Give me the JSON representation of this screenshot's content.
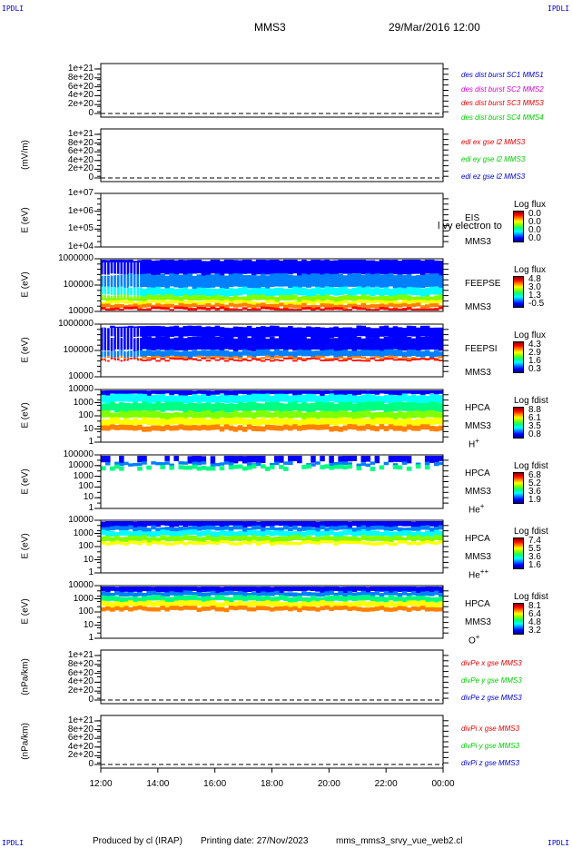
{
  "corners": {
    "tl": "IPDLI",
    "tr": "IPDLI",
    "bl": "IPDLI",
    "br": "IPDLI"
  },
  "header": {
    "spacecraft": "MMS3",
    "datetime": "29/Mar/2016 12:00"
  },
  "footer": {
    "produced": "Produced by cl (IRAP)",
    "printing": "Printing date: 27/Nov/2023",
    "file": "mms_mms3_srvy_vue_web2.cl"
  },
  "colors": {
    "red": "#e00000",
    "green": "#00cc00",
    "blue": "#0000cc",
    "magenta": "#cc00cc"
  },
  "chart_data": {
    "type": "heatmap",
    "x_ticks": [
      "12:00",
      "14:00",
      "16:00",
      "18:00",
      "20:00",
      "22:00",
      "00:00"
    ],
    "panels": [
      {
        "id": "p1",
        "ylabel": "",
        "yticks": [
          "1e+21",
          "8e+20",
          "6e+20",
          "4e+20",
          "2e+20",
          "0"
        ],
        "legend": [
          {
            "text": "des dist burst SC1 MMS1",
            "color": "#0000cc"
          },
          {
            "text": "des dist burst SC2 MMS2",
            "color": "#cc00cc"
          },
          {
            "text": "des dist burst SC3 MMS3",
            "color": "#e00000"
          },
          {
            "text": "des dist burst SC4 MMS4",
            "color": "#00cc00"
          }
        ]
      },
      {
        "id": "p2",
        "ylabel": "(mV/m)",
        "yticks": [
          "1e+21",
          "8e+20",
          "6e+20",
          "4e+20",
          "2e+20",
          "0"
        ],
        "legend": [
          {
            "text": "edi ex gse l2 MMS3",
            "color": "#e00000"
          },
          {
            "text": "edi ey gse l2 MMS3",
            "color": "#00cc00"
          },
          {
            "text": "edi ez gse l2 MMS3",
            "color": "#0000cc"
          }
        ]
      },
      {
        "id": "p3",
        "ylabel": "E (eV)",
        "yticks": [
          "1e+07",
          "1e+06",
          "1e+05",
          "1e+04"
        ],
        "instrument": "EIS",
        "sc": "MMS3",
        "overlay": "l vy electron to",
        "cbar_title": "Log flux",
        "cbar_values": [
          "0.0",
          "0.0",
          "0.0",
          "0.0"
        ]
      },
      {
        "id": "p4",
        "ylabel": "E (eV)",
        "yticks": [
          "1000000",
          "100000",
          "10000"
        ],
        "instrument": "FEEPSE",
        "sc": "MMS3",
        "cbar_title": "Log flux",
        "cbar_values": [
          "4.8",
          "3.0",
          "1.3",
          "-0.5"
        ]
      },
      {
        "id": "p5",
        "ylabel": "E (eV)",
        "yticks": [
          "1000000",
          "100000",
          "10000"
        ],
        "instrument": "FEEPSI",
        "sc": "MMS3",
        "cbar_title": "Log flux",
        "cbar_values": [
          "4.3",
          "2.9",
          "1.6",
          "0.3"
        ]
      },
      {
        "id": "p6",
        "ylabel": "E (eV)",
        "yticks": [
          "10000",
          "1000",
          "100",
          "10",
          "1"
        ],
        "instrument": "HPCA",
        "sc": "MMS3",
        "species": "H",
        "charge": "+",
        "cbar_title": "Log fdist",
        "cbar_values": [
          "8.8",
          "6.1",
          "3.5",
          "0.8"
        ]
      },
      {
        "id": "p7",
        "ylabel": "E (eV)",
        "yticks": [
          "100000",
          "10000",
          "1000",
          "100",
          "10",
          "1"
        ],
        "instrument": "HPCA",
        "sc": "MMS3",
        "species": "He",
        "charge": "+",
        "cbar_title": "Log fdist",
        "cbar_values": [
          "6.8",
          "5.2",
          "3.6",
          "1.9"
        ]
      },
      {
        "id": "p8",
        "ylabel": "E (eV)",
        "yticks": [
          "10000",
          "1000",
          "100",
          "10",
          "1"
        ],
        "instrument": "HPCA",
        "sc": "MMS3",
        "species": "He",
        "charge": "++",
        "cbar_title": "Log fdist",
        "cbar_values": [
          "7.4",
          "5.5",
          "3.6",
          "1.6"
        ]
      },
      {
        "id": "p9",
        "ylabel": "E (eV)",
        "yticks": [
          "10000",
          "1000",
          "100",
          "10",
          "1"
        ],
        "instrument": "HPCA",
        "sc": "MMS3",
        "species": "O",
        "charge": "+",
        "cbar_title": "Log fdist",
        "cbar_values": [
          "8.1",
          "6.4",
          "4.8",
          "3.2"
        ]
      },
      {
        "id": "p10",
        "ylabel": "(nPa/km)",
        "yticks": [
          "1e+21",
          "8e+20",
          "6e+20",
          "4e+20",
          "2e+20",
          "0"
        ],
        "legend": [
          {
            "text": "divPe x gse MMS3",
            "color": "#e00000"
          },
          {
            "text": "divPe y gse MMS3",
            "color": "#00cc00"
          },
          {
            "text": "divPe z gse MMS3",
            "color": "#0000cc"
          }
        ]
      },
      {
        "id": "p11",
        "ylabel": "(nPa/km)",
        "yticks": [
          "1e+21",
          "8e+20",
          "6e+20",
          "4e+20",
          "2e+20",
          "0"
        ],
        "legend": [
          {
            "text": "divPi x gse MMS3",
            "color": "#e00000"
          },
          {
            "text": "divPi y gse MMS3",
            "color": "#00cc00"
          },
          {
            "text": "divPi z gse MMS3",
            "color": "#0000cc"
          }
        ]
      }
    ]
  }
}
